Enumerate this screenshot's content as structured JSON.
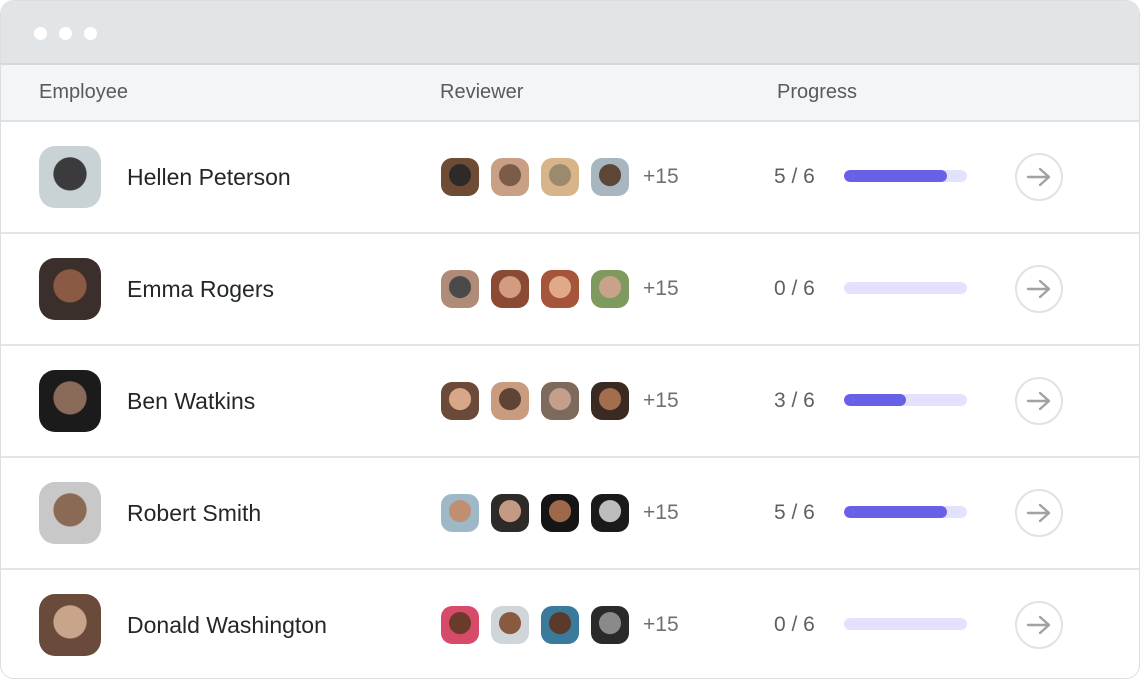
{
  "window": {
    "controls": [
      "dot",
      "dot",
      "dot"
    ]
  },
  "columns": {
    "employee": "Employee",
    "reviewer": "Reviewer",
    "progress": "Progress"
  },
  "colors": {
    "accent": "#6761e6",
    "track": "#e3e1fb"
  },
  "rows": [
    {
      "name": "Hellen Peterson",
      "avatar": [
        "#c9d3d6",
        "#3b3a3c"
      ],
      "reviewers": [
        [
          "#6d4b35",
          "#2e2a2a"
        ],
        [
          "#c9a085",
          "#7b5c48"
        ],
        [
          "#d8b48a",
          "#9b8a6e"
        ],
        [
          "#a8b6bf",
          "#5c4636"
        ]
      ],
      "more": "+15",
      "done": 5,
      "total": 6,
      "progress_label": "5 / 6"
    },
    {
      "name": "Emma Rogers",
      "avatar": [
        "#3a2f2b",
        "#8a5a45"
      ],
      "reviewers": [
        [
          "#b08c78",
          "#4a4a4a"
        ],
        [
          "#8a4a34",
          "#d39b80"
        ],
        [
          "#a7553a",
          "#e0a987"
        ],
        [
          "#7e9a5e",
          "#c8a28a"
        ]
      ],
      "more": "+15",
      "done": 0,
      "total": 6,
      "progress_label": "0 / 6"
    },
    {
      "name": "Ben Watkins",
      "avatar": [
        "#1b1b1b",
        "#8a6a58"
      ],
      "reviewers": [
        [
          "#6b4a3a",
          "#d8a788"
        ],
        [
          "#c99c80",
          "#5f4334"
        ],
        [
          "#7e6a5c",
          "#c4a08a"
        ],
        [
          "#3a2a22",
          "#a46d4e"
        ]
      ],
      "more": "+15",
      "done": 3,
      "total": 6,
      "progress_label": "3 / 6"
    },
    {
      "name": "Robert Smith",
      "avatar": [
        "#c8c8c8",
        "#8b6a55"
      ],
      "reviewers": [
        [
          "#9fb8c8",
          "#c08f72"
        ],
        [
          "#2e2a28",
          "#c49a84"
        ],
        [
          "#151515",
          "#a0684a"
        ],
        [
          "#1a1a1a",
          "#bdbdbd"
        ]
      ],
      "more": "+15",
      "done": 5,
      "total": 6,
      "progress_label": "5 / 6"
    },
    {
      "name": "Donald Washington",
      "avatar": [
        "#6a4a3a",
        "#c8a58a"
      ],
      "reviewers": [
        [
          "#d84a6a",
          "#6a3a2a"
        ],
        [
          "#cfd5d8",
          "#8a5a40"
        ],
        [
          "#3a7a9a",
          "#5a3a2a"
        ],
        [
          "#2a2a2a",
          "#8a8a8a"
        ]
      ],
      "more": "+15",
      "done": 0,
      "total": 6,
      "progress_label": "0 / 6"
    }
  ]
}
